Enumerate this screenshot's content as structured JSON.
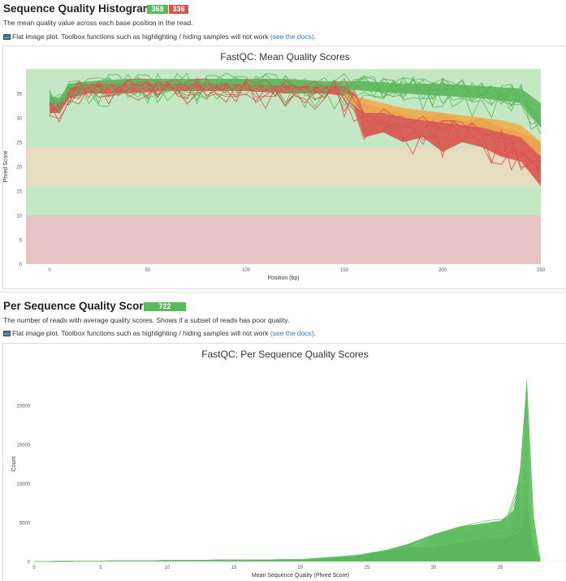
{
  "sections": [
    {
      "title": "Sequence Quality Histograms",
      "badges": [
        {
          "label": "368",
          "color": "#5cb85c"
        },
        {
          "label": "336",
          "color": "#d9534f"
        }
      ],
      "description": "The mean quality value across each base position in the read.",
      "flat_note": "Flat image plot. Toolbox functions such as highlighting / hiding samples will not work ",
      "flat_link": "(see the docs)",
      "flat_end": "."
    },
    {
      "title": "Per Sequence Quality Scores",
      "badges": [
        {
          "label": "722",
          "color": "#5cb85c"
        }
      ],
      "description": "The number of reads with average quality scores. Shows if a subset of reads has poor quality.",
      "flat_note": "Flat image plot. Toolbox functions such as highlighting / hiding samples will not work ",
      "flat_link": "(see the docs)",
      "flat_end": "."
    }
  ],
  "colors": {
    "zone_green": "#c4e8c4",
    "zone_orange": "#e6dcc0",
    "zone_red": "#e6c4c4",
    "pass_line": "#5cb85c",
    "warn_line": "#f0ad4e",
    "fail_line": "#d9534f"
  },
  "chart_data": [
    {
      "type": "line",
      "title": "FastQC: Mean Quality Scores",
      "xlabel": "Position (bp)",
      "ylabel": "Phred Score",
      "xlim": [
        -12,
        250
      ],
      "ylim": [
        0,
        40
      ],
      "xticks": [
        0,
        50,
        100,
        150,
        200,
        250
      ],
      "yticks": [
        0,
        5,
        10,
        15,
        20,
        25,
        30,
        35
      ],
      "zones": [
        {
          "from": 0,
          "to": 10,
          "color": "#e6c4c4"
        },
        {
          "from": 10,
          "to": 16,
          "color": "#c4e8c4"
        },
        {
          "from": 16,
          "to": 24,
          "color": "#e6dcc0"
        },
        {
          "from": 24,
          "to": 40,
          "color": "#c4e8c4"
        }
      ],
      "series": [
        {
          "status": "pass",
          "x": [
            0,
            5,
            10,
            20,
            40,
            60,
            80,
            100,
            120,
            140,
            150,
            160,
            180,
            200,
            220,
            240,
            250
          ],
          "lower": [
            33,
            32,
            35,
            36,
            36.5,
            36.5,
            36.5,
            36.5,
            36,
            36,
            36,
            35.5,
            35,
            34.5,
            34,
            33,
            28
          ],
          "upper": [
            34.5,
            34,
            37,
            37.5,
            38,
            38,
            38,
            38,
            38,
            37.5,
            37.5,
            37.5,
            37,
            37,
            36.5,
            36,
            33
          ]
        },
        {
          "status": "fail",
          "x": [
            0,
            5,
            10,
            20,
            40,
            60,
            80,
            100,
            120,
            140,
            150,
            155,
            160,
            170,
            180,
            190,
            200,
            210,
            220,
            230,
            240,
            250
          ],
          "lower": [
            31,
            31,
            34,
            35,
            35,
            35.5,
            35.5,
            35.5,
            35,
            35,
            34.5,
            32,
            26,
            27,
            25,
            26,
            23,
            25,
            24,
            22,
            21,
            16
          ],
          "upper": [
            33,
            33,
            36,
            37,
            37,
            37,
            37,
            37,
            36.5,
            36.5,
            36.5,
            35,
            33,
            32,
            31,
            30,
            31,
            29,
            30,
            28,
            27,
            25
          ]
        },
        {
          "status": "warn",
          "x": [
            150,
            160,
            170,
            180,
            190,
            200,
            210,
            220,
            230,
            240,
            250
          ],
          "lower": [
            34,
            31,
            31,
            30,
            29.5,
            29,
            28.5,
            28,
            27,
            26,
            22
          ],
          "upper": [
            35,
            34,
            33,
            32,
            31.5,
            31,
            30.5,
            30,
            29.5,
            28.5,
            25
          ]
        }
      ]
    },
    {
      "type": "area",
      "title": "FastQC: Per Sequence Quality Scores",
      "xlabel": "Mean Sequence Quality (Phred Score)",
      "ylabel": "Count",
      "xlim": [
        0,
        40
      ],
      "ylim": [
        0,
        25000
      ],
      "xticks": [
        0,
        5,
        10,
        15,
        20,
        25,
        30,
        35
      ],
      "yticks": [
        0,
        5000,
        10000,
        15000,
        20000
      ],
      "zones": [
        {
          "from": 0,
          "to": 10,
          "color": "#e6c4c4"
        },
        {
          "from": 10,
          "to": 16,
          "color": "#c4e8c4"
        },
        {
          "from": 16,
          "to": 24,
          "color": "#e6dcc0"
        },
        {
          "from": 24,
          "to": 40,
          "color": "#c4e8c4"
        }
      ],
      "envelope": {
        "x": [
          0,
          10,
          16,
          20,
          24,
          26,
          28,
          30,
          32,
          34,
          35,
          36,
          36.5,
          37,
          37.5,
          38
        ],
        "y": [
          0,
          50,
          150,
          300,
          800,
          1300,
          2200,
          3500,
          4500,
          4900,
          5200,
          6500,
          12000,
          23500,
          6000,
          300
        ]
      },
      "outline_peaks": [
        8000,
        9500,
        11000,
        12500,
        14000,
        15500,
        17000,
        18500,
        20000,
        21500
      ]
    }
  ]
}
